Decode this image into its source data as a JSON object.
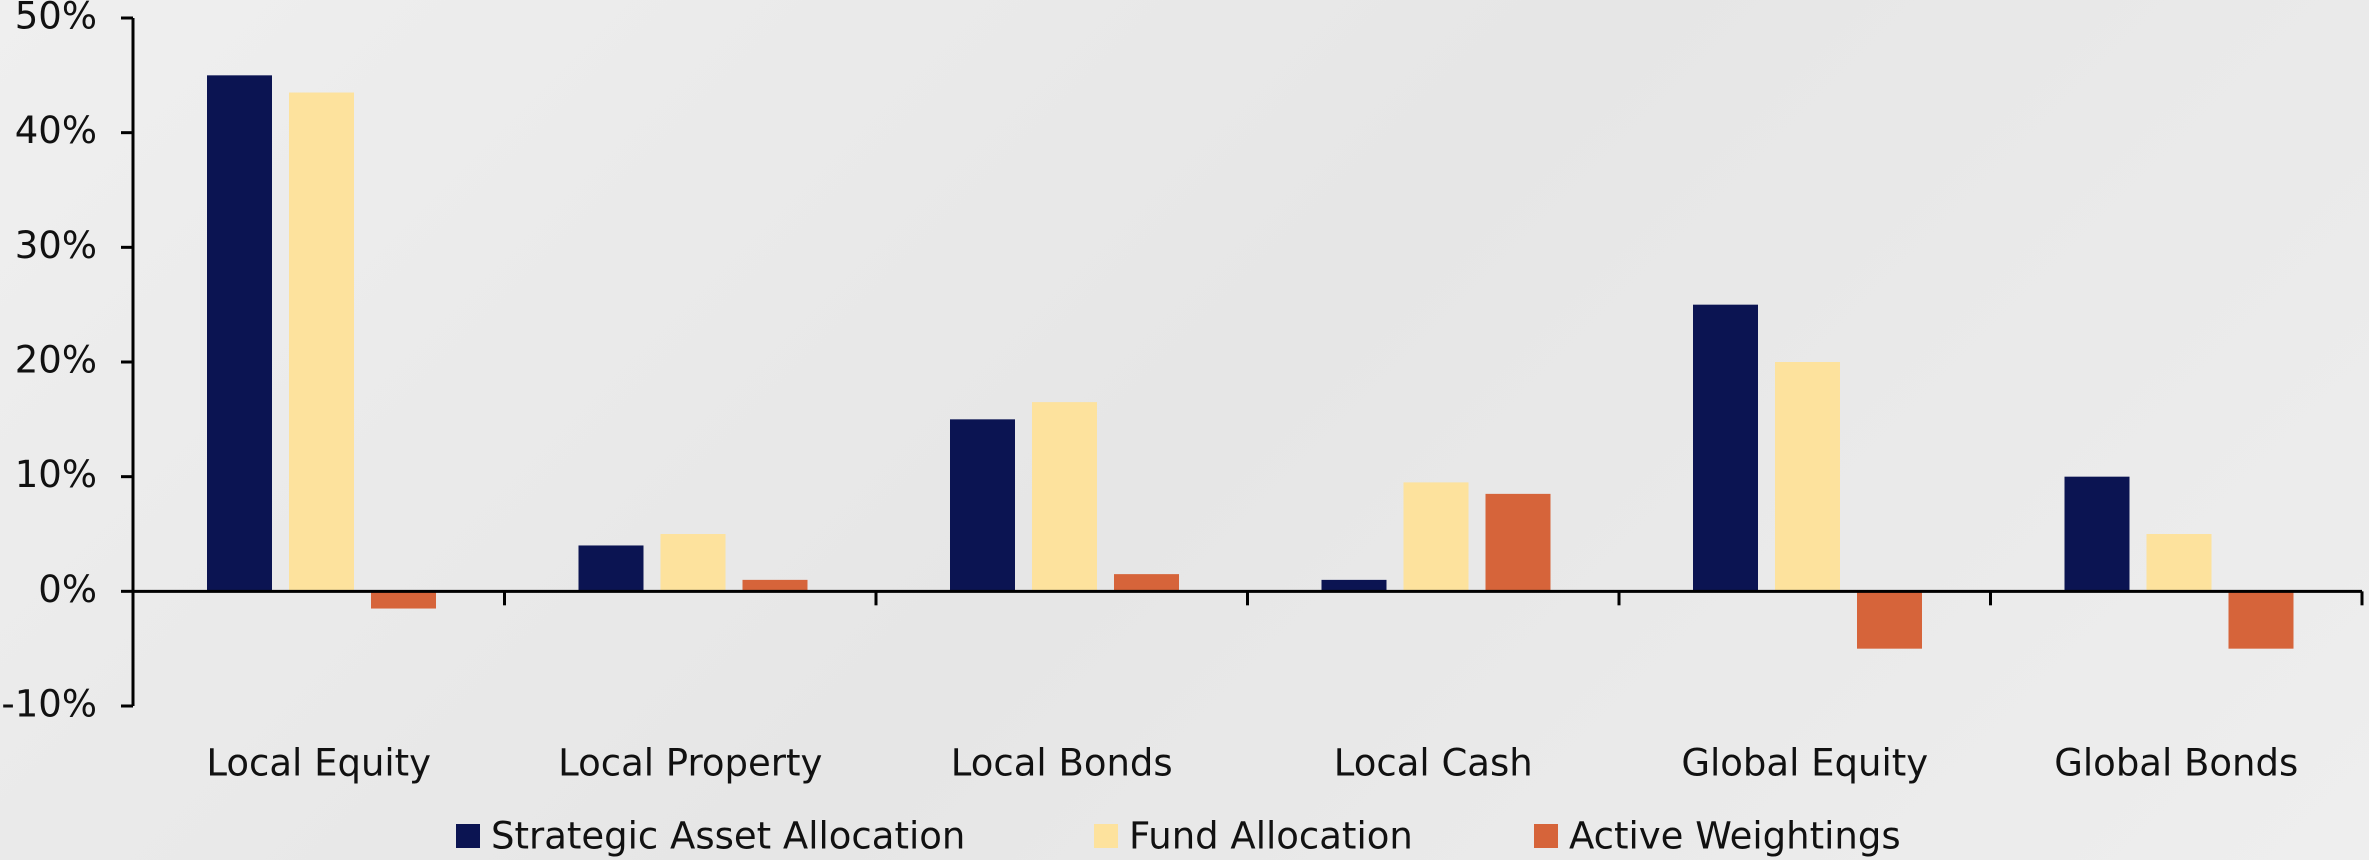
{
  "chart_data": {
    "type": "bar",
    "categories": [
      "Local Equity",
      "Local Property",
      "Local Bonds",
      "Local Cash",
      "Global Equity",
      "Global Bonds"
    ],
    "series": [
      {
        "name": "Strategic Asset Allocation",
        "color": "#0b1452",
        "values": [
          45,
          4,
          15,
          1,
          25,
          10
        ]
      },
      {
        "name": "Fund Allocation",
        "color": "#fde29d",
        "values": [
          43.5,
          5,
          16.5,
          9.5,
          20,
          5
        ]
      },
      {
        "name": "Active Weightings",
        "color": "#d6643a",
        "values": [
          -1.5,
          1,
          1.5,
          8.5,
          -5,
          -5
        ]
      }
    ],
    "ylim": [
      -10,
      50
    ],
    "yticks": [
      {
        "value": -10,
        "label": "-10%"
      },
      {
        "value": 0,
        "label": "0%"
      },
      {
        "value": 10,
        "label": "10%"
      },
      {
        "value": 20,
        "label": "20%"
      },
      {
        "value": 30,
        "label": "30%"
      },
      {
        "value": 40,
        "label": "40%"
      },
      {
        "value": 50,
        "label": "50%"
      }
    ],
    "legend": "bottom"
  }
}
